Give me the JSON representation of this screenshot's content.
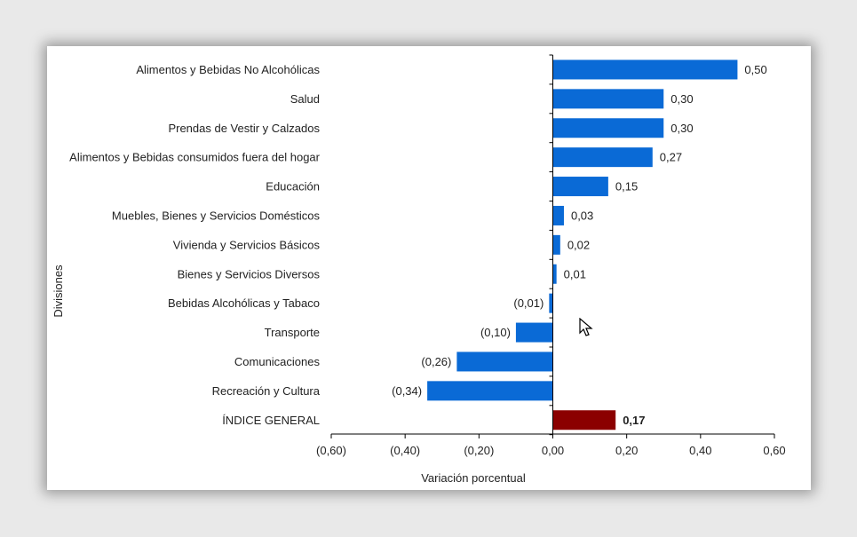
{
  "chart_data": {
    "type": "bar",
    "orientation": "horizontal",
    "ylabel": "Divisiones",
    "xlabel": "Variación porcentual",
    "xlim": [
      -0.6,
      0.6
    ],
    "xticks": [
      -0.6,
      -0.4,
      -0.2,
      0.0,
      0.2,
      0.4,
      0.6
    ],
    "xtick_labels": [
      "(0,60)",
      "(0,40)",
      "(0,20)",
      "0,00",
      "0,20",
      "0,40",
      "0,60"
    ],
    "grid": false,
    "colors": {
      "bar": "#0a6ad6",
      "total": "#8b0000",
      "axis": "#000000"
    },
    "categories": [
      "Alimentos y Bebidas No Alcohólicas",
      "Salud",
      "Prendas de Vestir y Calzados",
      "Alimentos y Bebidas consumidos fuera del hogar",
      "Educación",
      "Muebles, Bienes y Servicios Domésticos",
      "Vivienda y Servicios Básicos",
      "Bienes y Servicios Diversos",
      "Bebidas Alcohólicas y Tabaco",
      "Transporte",
      "Comunicaciones",
      "Recreación y Cultura",
      "ÍNDICE GENERAL"
    ],
    "values": [
      0.5,
      0.3,
      0.3,
      0.27,
      0.15,
      0.03,
      0.02,
      0.01,
      -0.01,
      -0.1,
      -0.26,
      -0.34,
      0.17
    ],
    "value_labels": [
      "0,50",
      "0,30",
      "0,30",
      "0,27",
      "0,15",
      "0,03",
      "0,02",
      "0,01",
      "(0,01)",
      "(0,10)",
      "(0,26)",
      "(0,34)",
      "0,17"
    ],
    "highlight_category": "ÍNDICE GENERAL"
  }
}
